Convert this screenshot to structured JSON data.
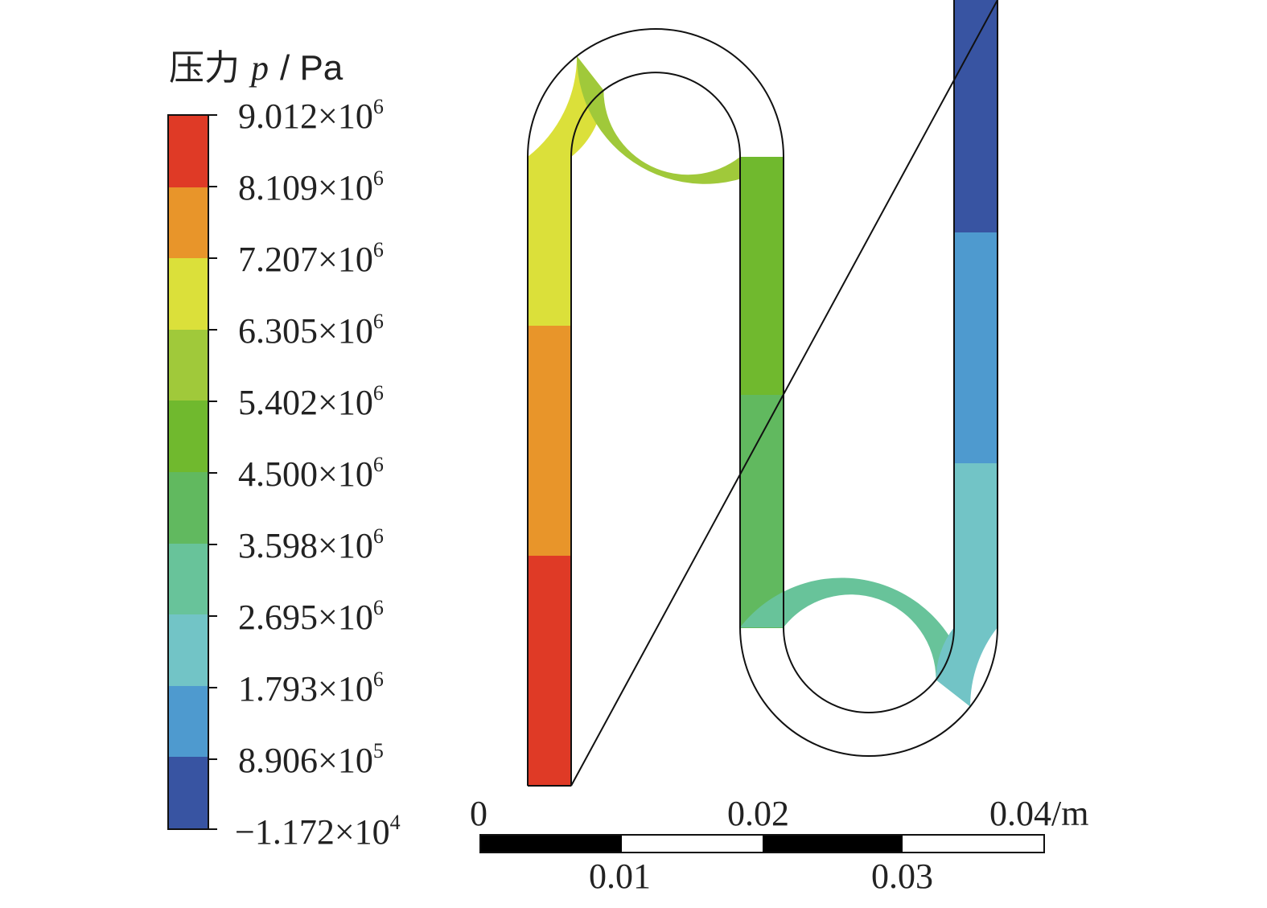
{
  "legend": {
    "title_cn": "压力",
    "title_sym": "p",
    "title_unit": "/ Pa",
    "ticks": [
      {
        "mant": "9.012×10",
        "exp": "6"
      },
      {
        "mant": "8.109×10",
        "exp": "6"
      },
      {
        "mant": "7.207×10",
        "exp": "6"
      },
      {
        "mant": "6.305×10",
        "exp": "6"
      },
      {
        "mant": "5.402×10",
        "exp": "6"
      },
      {
        "mant": "4.500×10",
        "exp": "6"
      },
      {
        "mant": "3.598×10",
        "exp": "6"
      },
      {
        "mant": "2.695×10",
        "exp": "6"
      },
      {
        "mant": "1.793×10",
        "exp": "6"
      },
      {
        "mant": "8.906×10",
        "exp": "5"
      },
      {
        "mant": "−1.172×10",
        "exp": "4"
      }
    ],
    "band_colors": [
      "#df3a26",
      "#e8952a",
      "#dbe03a",
      "#a0c93a",
      "#70b92e",
      "#61b95f",
      "#68c39a",
      "#72c4c6",
      "#4e9acf",
      "#3854a2"
    ]
  },
  "scale": {
    "labels_top": [
      "0",
      "0.02",
      "0.04/m"
    ],
    "labels_bottom": [
      "0.01",
      "0.03"
    ],
    "segment_colors": [
      "#000000",
      "#ffffff",
      "#000000",
      "#ffffff"
    ]
  },
  "field_colors": {
    "red": "#df3a26",
    "orange": "#e8952a",
    "yellow": "#dbe03a",
    "yellowgreen": "#a0c93a",
    "green": "#70b92e",
    "midgreen": "#61b95f",
    "teal": "#68c39a",
    "cyan": "#72c4c6",
    "blue": "#4e9acf",
    "navy": "#3854a2",
    "outline": "#111111"
  }
}
